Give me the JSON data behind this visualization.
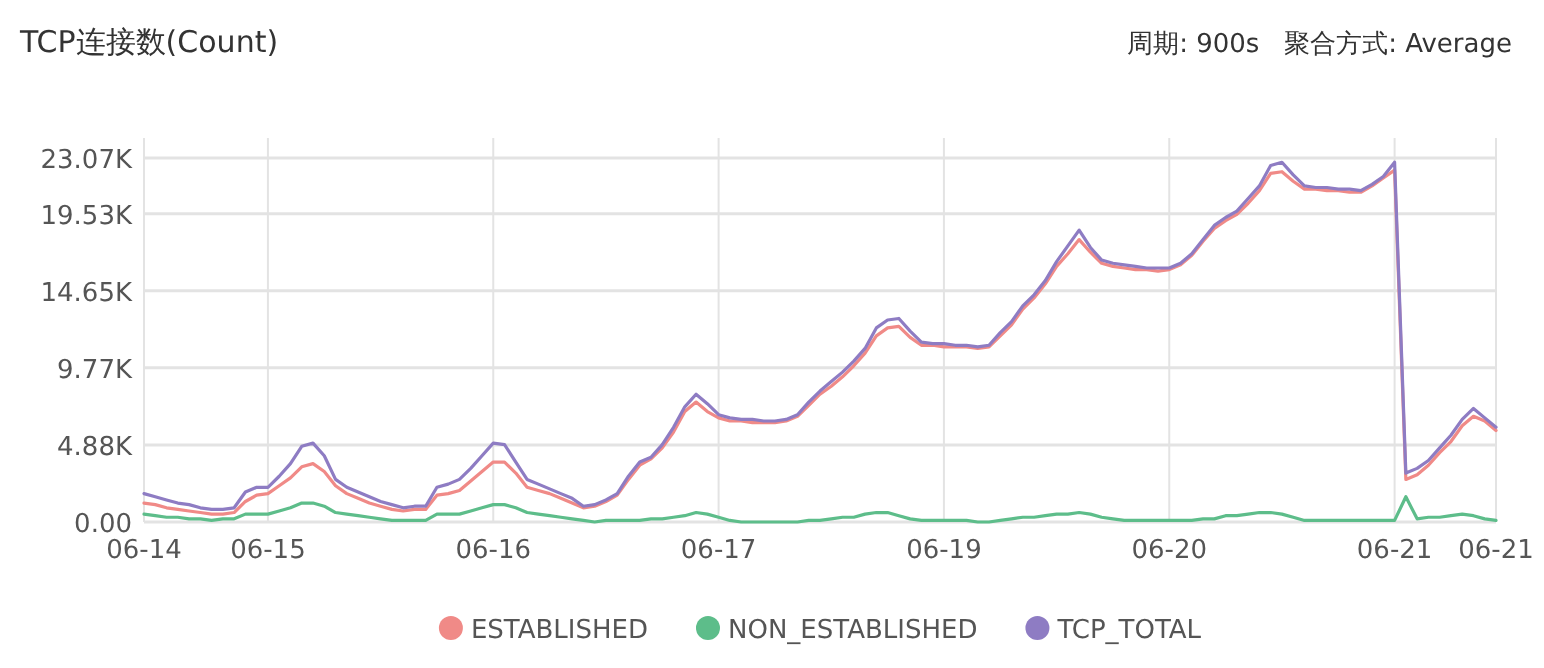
{
  "chart_data": {
    "type": "line",
    "title": "TCP连接数(Count)",
    "subtitle": "周期: 900s   聚合方式: Average",
    "categories": [
      "06-14",
      null,
      null,
      null,
      null,
      null,
      null,
      null,
      null,
      null,
      null,
      "06-15",
      null,
      null,
      null,
      null,
      null,
      null,
      null,
      null,
      null,
      null,
      null,
      null,
      null,
      null,
      null,
      null,
      null,
      null,
      null,
      "06-16",
      null,
      null,
      null,
      null,
      null,
      null,
      null,
      null,
      null,
      null,
      null,
      null,
      null,
      null,
      null,
      null,
      null,
      null,
      null,
      "06-17",
      null,
      null,
      null,
      null,
      null,
      null,
      null,
      null,
      null,
      null,
      null,
      null,
      null,
      null,
      null,
      null,
      null,
      null,
      null,
      "06-19",
      null,
      null,
      null,
      null,
      null,
      null,
      null,
      null,
      null,
      null,
      null,
      null,
      null,
      null,
      null,
      null,
      null,
      null,
      null,
      "06-20",
      null,
      null,
      null,
      null,
      null,
      null,
      null,
      null,
      null,
      null,
      null,
      null,
      null,
      null,
      null,
      null,
      null,
      null,
      null,
      "06-21",
      null,
      null,
      null,
      null,
      null,
      null,
      null,
      null,
      "06-21"
    ],
    "ylim": [
      0,
      23070
    ],
    "yticks": [
      {
        "value": 0,
        "label": "0.00"
      },
      {
        "value": 4880,
        "label": "4.88K"
      },
      {
        "value": 9770,
        "label": "9.77K"
      },
      {
        "value": 14650,
        "label": "14.65K"
      },
      {
        "value": 19530,
        "label": "19.53K"
      },
      {
        "value": 23070,
        "label": "23.07K"
      }
    ],
    "grid": true,
    "legend": "bottom",
    "marker": "none",
    "series": [
      {
        "name": "ESTABLISHED",
        "color": "#f08a87",
        "values": [
          1200,
          1100,
          900,
          800,
          700,
          600,
          500,
          500,
          600,
          1300,
          1700,
          1800,
          2300,
          2800,
          3500,
          3700,
          3200,
          2300,
          1800,
          1500,
          1200,
          1000,
          800,
          700,
          800,
          800,
          1700,
          1800,
          2000,
          2600,
          3200,
          3800,
          3800,
          3100,
          2200,
          2000,
          1800,
          1500,
          1200,
          900,
          1000,
          1300,
          1700,
          2700,
          3600,
          4000,
          4700,
          5700,
          7000,
          7600,
          7000,
          6600,
          6400,
          6400,
          6300,
          6300,
          6300,
          6400,
          6700,
          7400,
          8100,
          8600,
          9200,
          9900,
          10700,
          11800,
          12300,
          12400,
          11700,
          11200,
          11200,
          11100,
          11100,
          11100,
          11000,
          11100,
          11800,
          12500,
          13500,
          14200,
          15100,
          16200,
          17000,
          17900,
          17100,
          16400,
          16200,
          16100,
          16000,
          16000,
          15900,
          16000,
          16300,
          16900,
          17800,
          18600,
          19100,
          19500,
          20200,
          21000,
          22100,
          22200,
          21600,
          21100,
          21100,
          21000,
          21000,
          20900,
          20900,
          21300,
          21800,
          22300,
          2700,
          3000,
          3600,
          4400,
          5100,
          6100,
          6700,
          6400,
          5800
        ]
      },
      {
        "name": "NON_ESTABLISHED",
        "color": "#5dbd8a",
        "values": [
          500,
          400,
          300,
          300,
          200,
          200,
          100,
          200,
          200,
          500,
          500,
          500,
          700,
          900,
          1200,
          1200,
          1000,
          600,
          500,
          400,
          300,
          200,
          100,
          100,
          100,
          100,
          500,
          500,
          500,
          700,
          900,
          1100,
          1100,
          900,
          600,
          500,
          400,
          300,
          200,
          100,
          0,
          100,
          100,
          100,
          100,
          200,
          200,
          300,
          400,
          600,
          500,
          300,
          100,
          0,
          0,
          0,
          0,
          0,
          0,
          100,
          100,
          200,
          300,
          300,
          500,
          600,
          600,
          400,
          200,
          100,
          100,
          100,
          100,
          100,
          0,
          0,
          100,
          200,
          300,
          300,
          400,
          500,
          500,
          600,
          500,
          300,
          200,
          100,
          100,
          100,
          100,
          100,
          100,
          100,
          200,
          200,
          400,
          400,
          500,
          600,
          600,
          500,
          300,
          100,
          100,
          100,
          100,
          100,
          100,
          100,
          100,
          100,
          1600,
          200,
          300,
          300,
          400,
          500,
          400,
          200,
          100
        ]
      },
      {
        "name": "TCP_TOTAL",
        "color": "#8e7cc3",
        "values": [
          1800,
          1600,
          1400,
          1200,
          1100,
          900,
          800,
          800,
          900,
          1900,
          2200,
          2200,
          2900,
          3700,
          4800,
          5000,
          4200,
          2700,
          2200,
          1900,
          1600,
          1300,
          1100,
          900,
          1000,
          1000,
          2200,
          2400,
          2700,
          3400,
          4200,
          5000,
          4900,
          3800,
          2700,
          2400,
          2100,
          1800,
          1500,
          1000,
          1100,
          1400,
          1800,
          2900,
          3800,
          4100,
          4900,
          6000,
          7300,
          8100,
          7500,
          6800,
          6600,
          6500,
          6500,
          6400,
          6400,
          6500,
          6800,
          7600,
          8300,
          8900,
          9500,
          10200,
          11000,
          12300,
          12800,
          12900,
          12100,
          11400,
          11300,
          11300,
          11200,
          11200,
          11100,
          11200,
          12000,
          12700,
          13700,
          14400,
          15300,
          16500,
          17500,
          18500,
          17400,
          16600,
          16400,
          16300,
          16200,
          16100,
          16100,
          16100,
          16400,
          17000,
          17900,
          18800,
          19300,
          19700,
          20500,
          21300,
          22600,
          22800,
          22000,
          21300,
          21200,
          21200,
          21100,
          21100,
          21000,
          21400,
          21900,
          22800,
          3100,
          3400,
          3900,
          4700,
          5500,
          6500,
          7200,
          6600,
          6000
        ]
      }
    ]
  }
}
